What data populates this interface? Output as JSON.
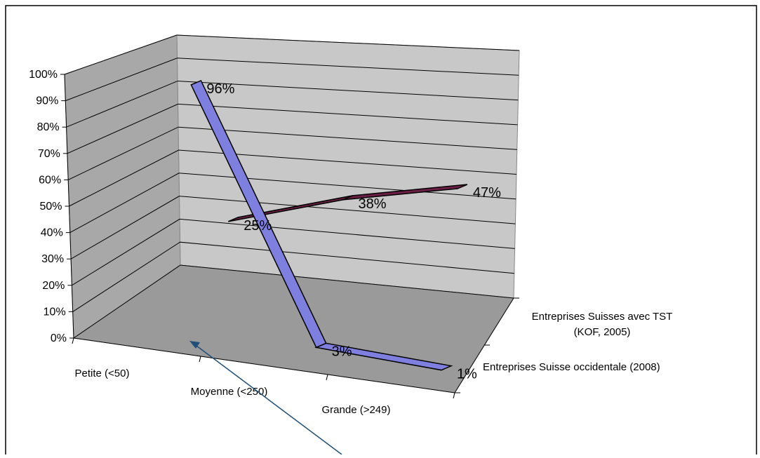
{
  "chart_data": {
    "type": "line",
    "categories": [
      "Petite (<50)",
      "Moyenne (<250)",
      "Grande (>249)"
    ],
    "series": [
      {
        "name": "Entreprises Suisse occidentale (2008)",
        "values": [
          96,
          3,
          1
        ],
        "labels": [
          "96%",
          "3%",
          "1%"
        ],
        "color": "#7f7fdf"
      },
      {
        "name_lines": [
          "Entreprises Suisses avec TST",
          "(KOF, 2005)"
        ],
        "values": [
          25,
          38,
          47
        ],
        "labels": [
          "25%",
          "38%",
          "47%"
        ],
        "color": "#6b1f45"
      }
    ],
    "yticks": [
      "0%",
      "10%",
      "20%",
      "30%",
      "40%",
      "50%",
      "60%",
      "70%",
      "80%",
      "90%",
      "100%"
    ],
    "ylim": [
      0,
      100
    ],
    "grid": true,
    "colors": {
      "back_wall": "#c8c8c8",
      "side_wall": "#a8a8a8",
      "floor": "#9a9a9a",
      "gridline": "#000000",
      "annotation_arrow": "#1f4e79"
    }
  }
}
